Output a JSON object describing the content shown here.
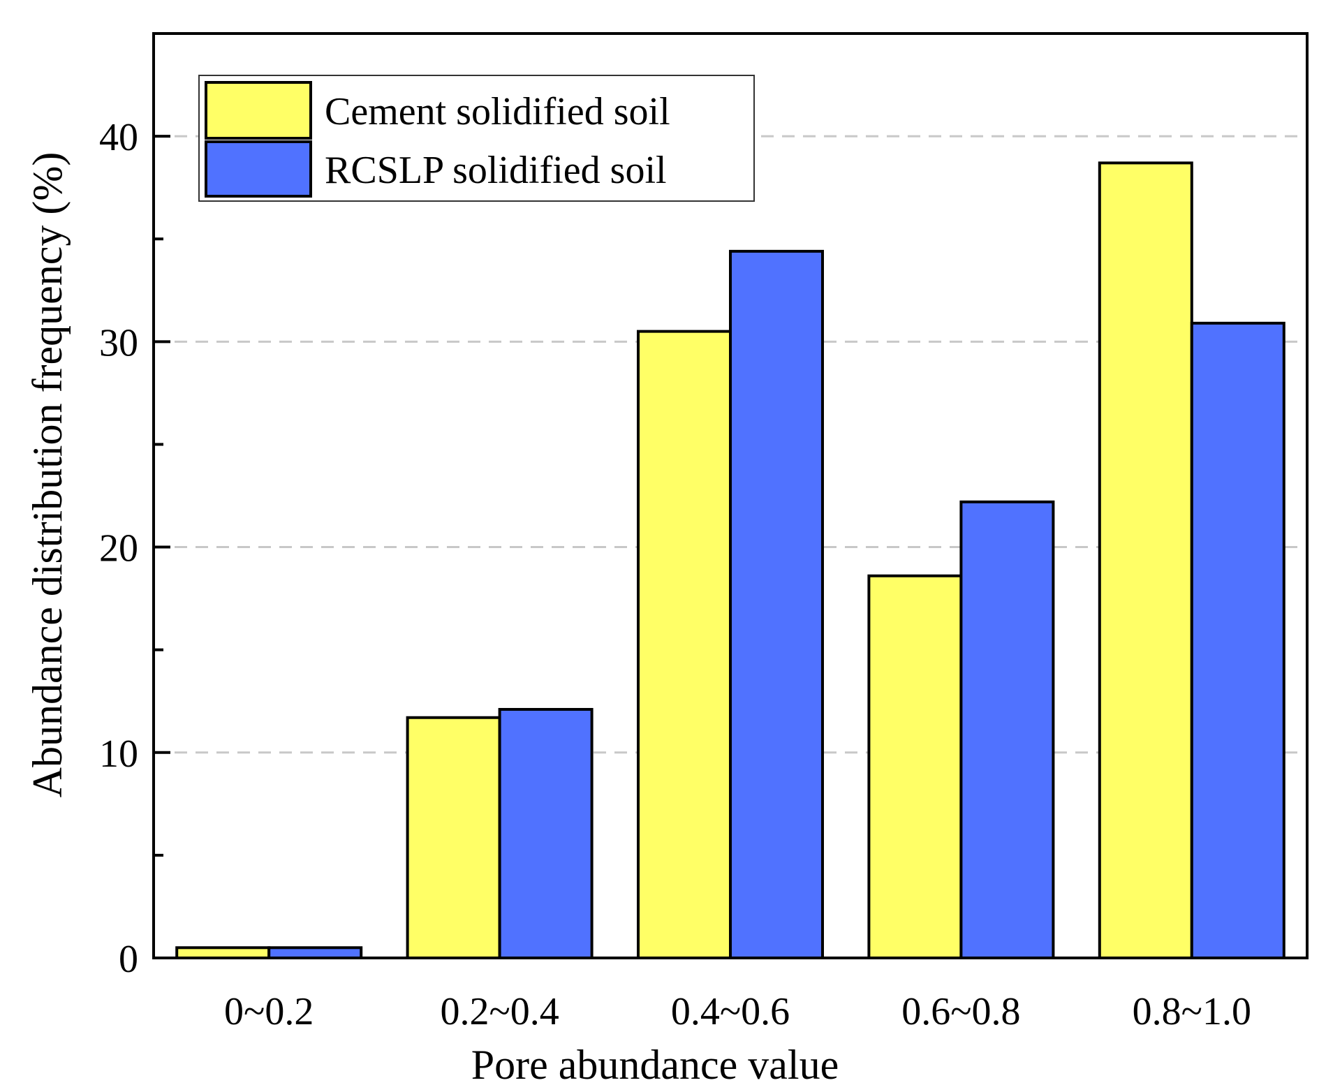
{
  "chart_data": {
    "type": "bar",
    "title": "",
    "xlabel": "Pore abundance value",
    "ylabel": "Abundance distribution frequency (%)",
    "categories": [
      "0~0.2",
      "0.2~0.4",
      "0.4~0.6",
      "0.6~0.8",
      "0.8~1.0"
    ],
    "series": [
      {
        "name": "Cement solidified soil",
        "color": "#ffff66",
        "values": [
          0.5,
          11.7,
          30.5,
          18.6,
          38.7
        ]
      },
      {
        "name": "RCSLP solidified soil",
        "color": "#5072ff",
        "values": [
          0.5,
          12.1,
          34.4,
          22.2,
          30.9
        ]
      }
    ],
    "ylim": [
      0,
      45
    ],
    "yticks": [
      0,
      10,
      20,
      30,
      40
    ],
    "grid": true,
    "legend_position": "top-left"
  }
}
